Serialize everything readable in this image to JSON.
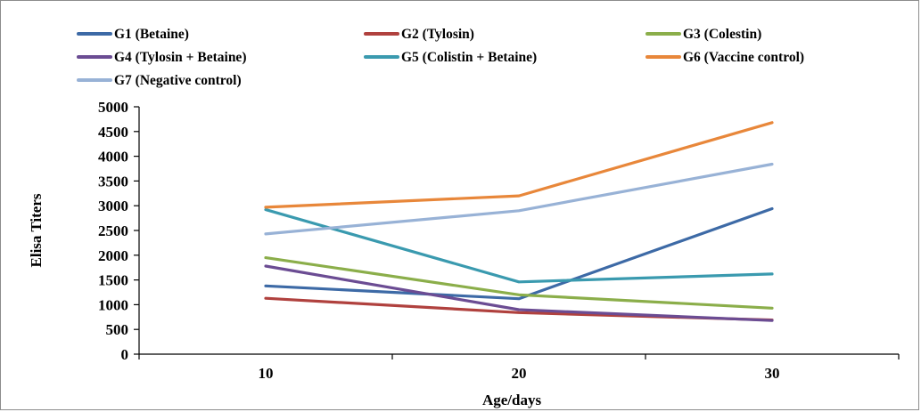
{
  "chart_data": {
    "type": "line",
    "x": [
      10,
      20,
      30
    ],
    "xlabel": "Age/days",
    "ylabel": "Elisa Titers",
    "ylim": [
      0,
      5000
    ],
    "yticks": [
      0,
      500,
      1000,
      1500,
      2000,
      2500,
      3000,
      3500,
      4000,
      4500,
      5000
    ],
    "grid": false,
    "legend_position": "top",
    "series": [
      {
        "name": "G1 (Betaine)",
        "color": "#3d6aa6",
        "values": [
          1380,
          1120,
          2940
        ]
      },
      {
        "name": "G2 (Tylosin)",
        "color": "#b0413e",
        "values": [
          1130,
          840,
          690
        ]
      },
      {
        "name": "G3 (Colestin)",
        "color": "#8bae4a",
        "values": [
          1950,
          1200,
          930
        ]
      },
      {
        "name": "G4 (Tylosin + Betaine)",
        "color": "#6b4c93",
        "values": [
          1780,
          900,
          680
        ]
      },
      {
        "name": "G5 (Colistin + Betaine)",
        "color": "#3a9aaf",
        "values": [
          2920,
          1460,
          1620
        ]
      },
      {
        "name": "G6 (Vaccine control)",
        "color": "#e8873a",
        "values": [
          2970,
          3200,
          4680
        ]
      },
      {
        "name": "G7 (Negative control)",
        "color": "#98b2d6",
        "values": [
          2430,
          2900,
          3840
        ]
      }
    ]
  }
}
